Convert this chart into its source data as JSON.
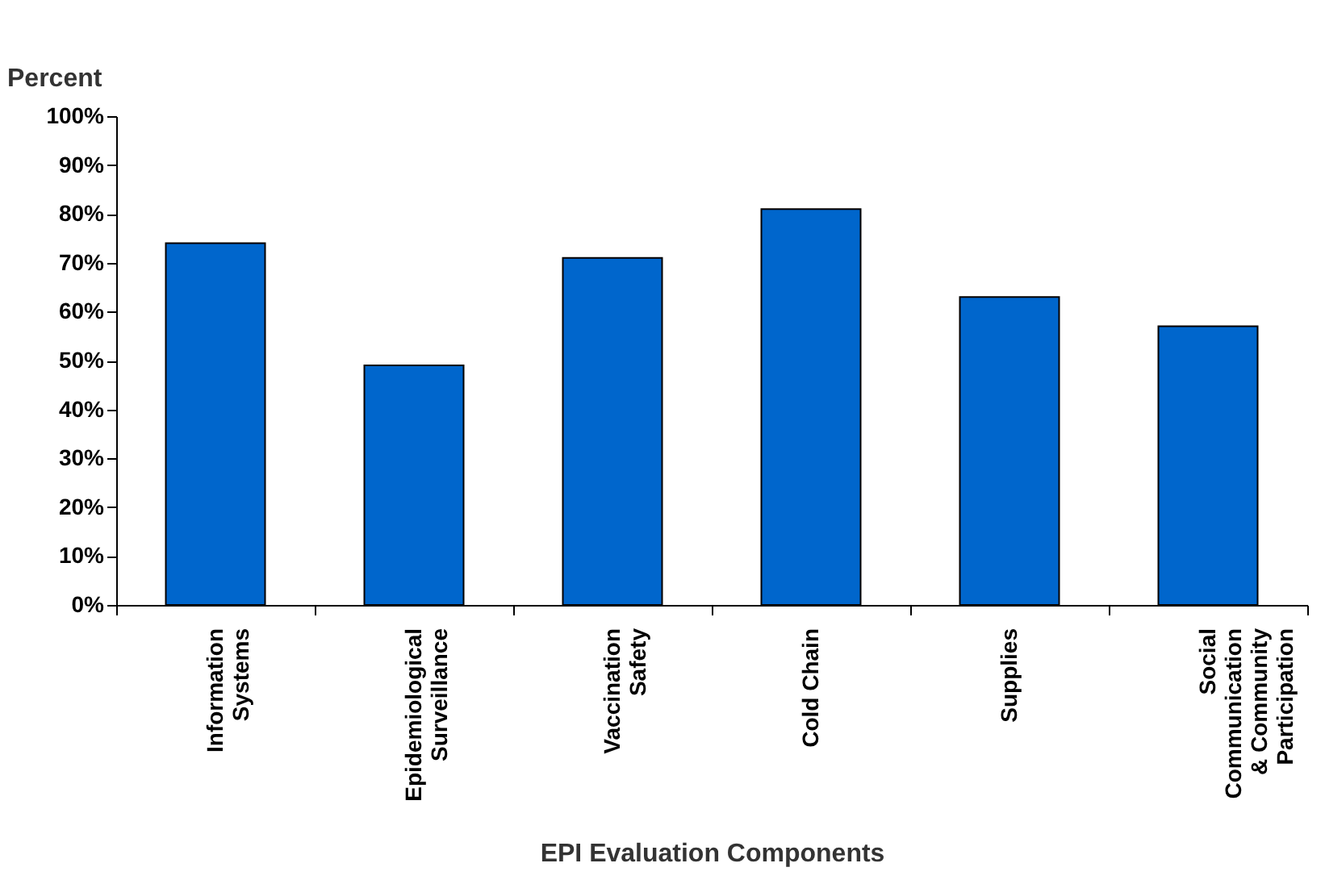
{
  "chart_data": {
    "type": "bar",
    "xlabel": "EPI Evaluation Components",
    "ylabel": "Percent",
    "categories": [
      "Information Systems",
      "Epidemiological Surveillance",
      "Vaccination Safety",
      "Cold Chain",
      "Supplies",
      "Social Communication & Community Participation"
    ],
    "values": [
      74,
      49,
      71,
      81,
      63,
      57
    ],
    "color": "#0066cc",
    "ylim": [
      0,
      100
    ],
    "yticks": [
      {
        "value": 0,
        "label": "0%"
      },
      {
        "value": 10,
        "label": "10%"
      },
      {
        "value": 20,
        "label": "20%"
      },
      {
        "value": 30,
        "label": "30%"
      },
      {
        "value": 40,
        "label": "40%"
      },
      {
        "value": 50,
        "label": "50%"
      },
      {
        "value": 60,
        "label": "60%"
      },
      {
        "value": 70,
        "label": "70%"
      },
      {
        "value": 80,
        "label": "80%"
      },
      {
        "value": 90,
        "label": "90%"
      },
      {
        "value": 100,
        "label": "100%"
      }
    ],
    "grid": false
  }
}
